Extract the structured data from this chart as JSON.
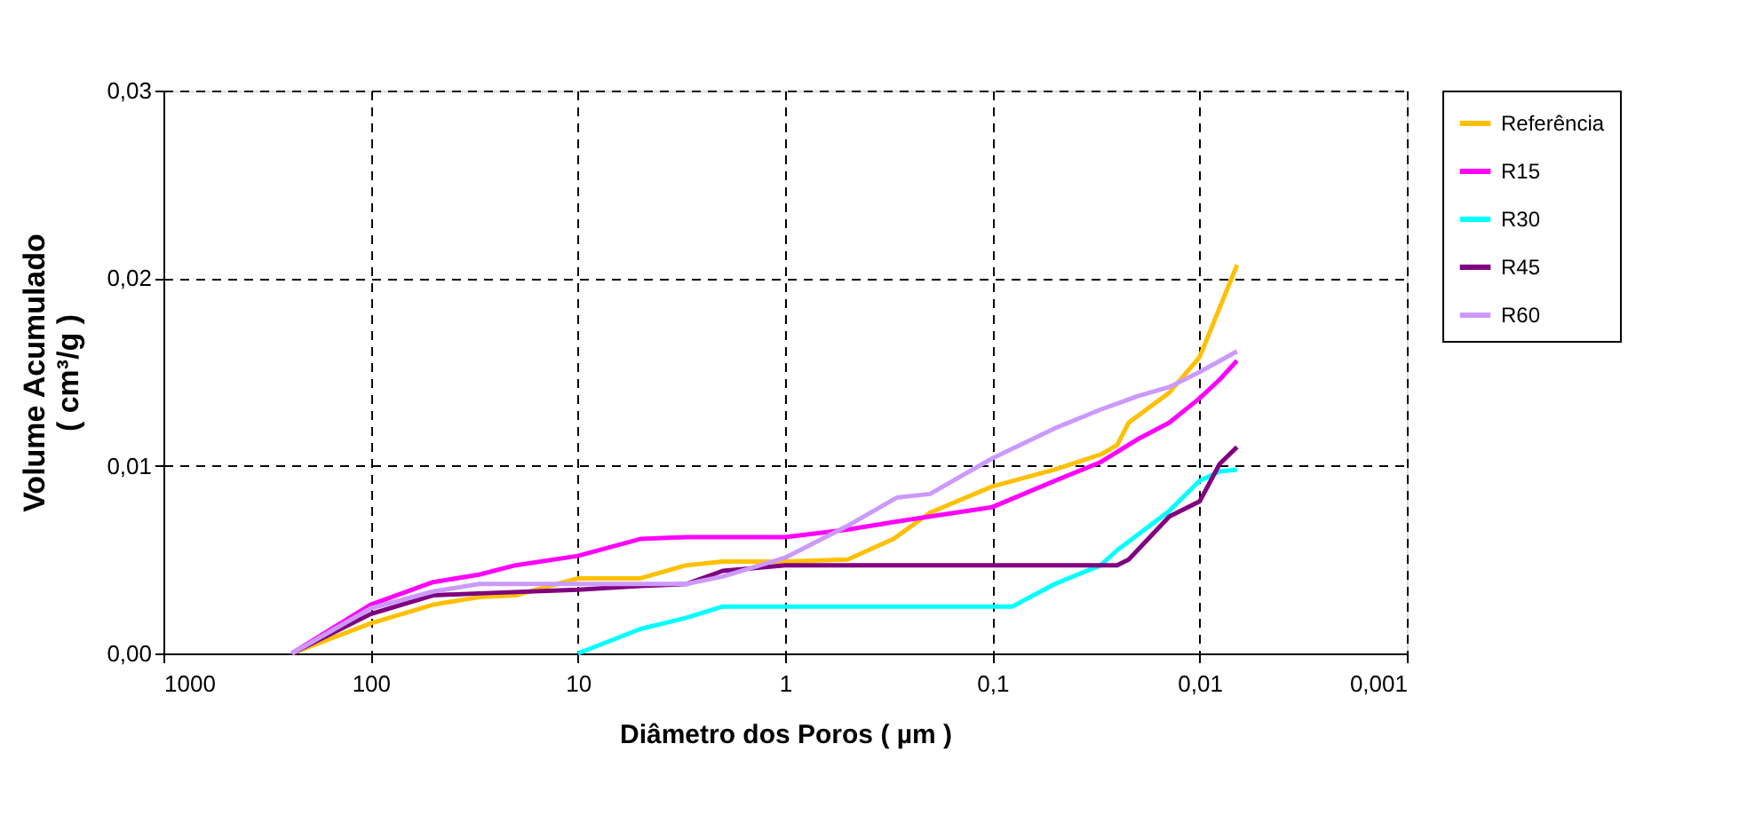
{
  "chart_data": {
    "type": "line",
    "xlabel": "Diâmetro dos Poros ( µm )",
    "ylabel": "Volume Acumulado\n( cm³/g )",
    "log": "x",
    "xlim": [
      1000,
      0.001
    ],
    "ylim": [
      0,
      0.03
    ],
    "xticks": [
      1000,
      100,
      10,
      1,
      {
        "value": 0.1,
        "label": "0,1"
      },
      {
        "value": 0.01,
        "label": "0,01"
      },
      {
        "value": 0.001,
        "label": "0,001"
      }
    ],
    "yticks": [
      {
        "value": 0,
        "label": "0,00"
      },
      {
        "value": 0.01,
        "label": "0,01"
      },
      {
        "value": 0.02,
        "label": "0,02"
      },
      {
        "value": 0.03,
        "label": "0,03"
      }
    ],
    "grid": true,
    "legend": "right",
    "line_style": "solid",
    "marker": "none",
    "series": [
      {
        "name": "Referência",
        "color": "#ffc000",
        "x": [
          240,
          100,
          50,
          30,
          20,
          10,
          5,
          3,
          2,
          1,
          0.5,
          0.3,
          0.2,
          0.1,
          0.05,
          0.03,
          0.025,
          0.022,
          0.014,
          0.01,
          0.0066
        ],
        "values": [
          0,
          0.0016,
          0.0026,
          0.003,
          0.0031,
          0.004,
          0.004,
          0.0047,
          0.0049,
          0.0049,
          0.005,
          0.0061,
          0.0075,
          0.0089,
          0.0098,
          0.0106,
          0.0111,
          0.0123,
          0.0139,
          0.0158,
          0.0207
        ]
      },
      {
        "name": "R15",
        "color": "#ff00ff",
        "x": [
          240,
          100,
          50,
          30,
          20,
          10,
          5,
          3,
          1,
          0.5,
          0.3,
          0.2,
          0.1,
          0.05,
          0.03,
          0.02,
          0.014,
          0.01,
          0.008,
          0.0066
        ],
        "values": [
          0,
          0.0026,
          0.0038,
          0.0042,
          0.0047,
          0.0052,
          0.0061,
          0.0062,
          0.0062,
          0.0066,
          0.007,
          0.0073,
          0.0078,
          0.0092,
          0.0102,
          0.0114,
          0.0123,
          0.0136,
          0.0146,
          0.0156
        ]
      },
      {
        "name": "R30",
        "color": "#00ffff",
        "x": [
          10,
          5,
          3,
          2,
          0.08,
          0.05,
          0.03,
          0.025,
          0.014,
          0.01,
          0.008,
          0.0066
        ],
        "values": [
          0,
          0.0013,
          0.0019,
          0.0025,
          0.0025,
          0.0037,
          0.0047,
          0.0055,
          0.0076,
          0.0092,
          0.0097,
          0.0098
        ]
      },
      {
        "name": "R45",
        "color": "#800080",
        "x": [
          240,
          100,
          50,
          30,
          10,
          5,
          3,
          2,
          1,
          0.025,
          0.022,
          0.014,
          0.01,
          0.008,
          0.0066
        ],
        "values": [
          0,
          0.0021,
          0.0031,
          0.0032,
          0.0034,
          0.0036,
          0.0037,
          0.0044,
          0.0047,
          0.0047,
          0.005,
          0.0073,
          0.0081,
          0.0101,
          0.011
        ]
      },
      {
        "name": "R60",
        "color": "#cc99ff",
        "x": [
          240,
          100,
          50,
          30,
          3,
          2,
          1,
          0.5,
          0.29,
          0.2,
          0.1,
          0.05,
          0.03,
          0.02,
          0.014,
          0.01,
          0.0066
        ],
        "values": [
          0,
          0.0024,
          0.0033,
          0.0037,
          0.0037,
          0.0041,
          0.0051,
          0.0068,
          0.0083,
          0.0085,
          0.0104,
          0.012,
          0.013,
          0.0137,
          0.0142,
          0.015,
          0.0161
        ]
      }
    ]
  }
}
